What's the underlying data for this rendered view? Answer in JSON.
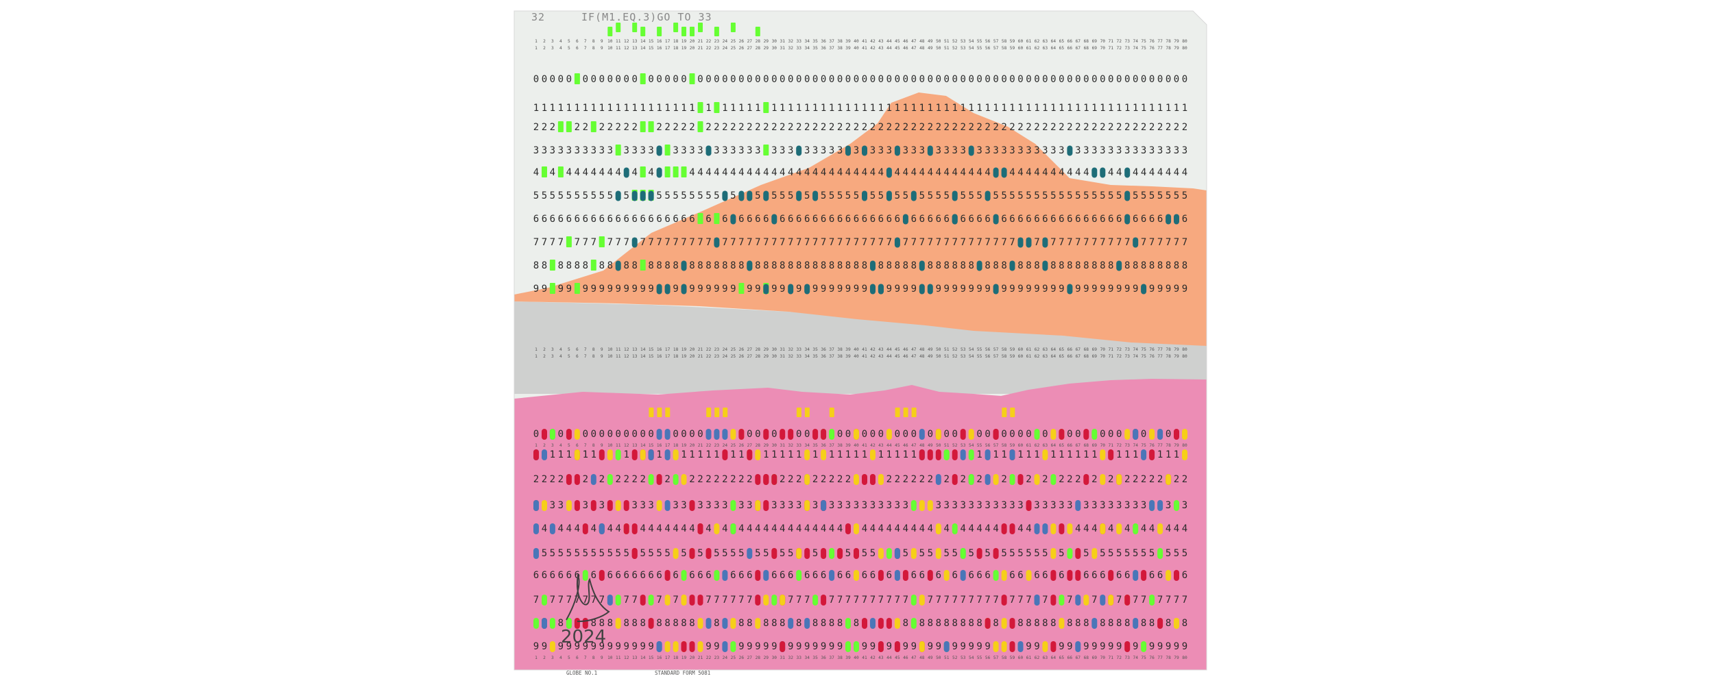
{
  "artwork": {
    "card_header": {
      "number": "32",
      "statement": "IF(M1.EQ.3)GO TO 33"
    },
    "digit_rows": [
      "0",
      "1",
      "2",
      "3",
      "4",
      "5",
      "6",
      "7",
      "8",
      "9"
    ],
    "column_count": 80,
    "footer": {
      "left": "GLOBE NO.1",
      "right": "STANDARD FORM 5081"
    },
    "signature": {
      "year": "2024"
    },
    "colors": {
      "card": "#ecefec",
      "orange_mountain": "#f7a97f",
      "pink_field": "#ec8db5",
      "gray_band": "#cfd0cf",
      "green_punch": "#66ff33",
      "teal_mark": "#1e6d78",
      "red_mark": "#d3183a",
      "yellow_mark": "#f6cf19",
      "blue_mark": "#4a76b8"
    }
  }
}
